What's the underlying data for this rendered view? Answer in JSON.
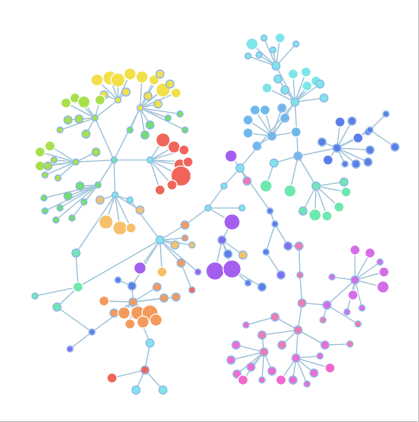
{
  "graph": {
    "layout": "force-directed",
    "edge_color": "#a9c9dc",
    "node_stroke": "#ffffff",
    "clusters": [
      {
        "name": "yellow",
        "color": "#f2e04a"
      },
      {
        "name": "lime",
        "color": "#a7e04a"
      },
      {
        "name": "green",
        "color": "#6fe06a"
      },
      {
        "name": "mint",
        "color": "#6fe7b0"
      },
      {
        "name": "cyan",
        "color": "#7ee6ea"
      },
      {
        "name": "sky",
        "color": "#6fb8ec"
      },
      {
        "name": "blue",
        "color": "#5c7ee8"
      },
      {
        "name": "indigo",
        "color": "#7f6ff0"
      },
      {
        "name": "purple",
        "color": "#a35ef0"
      },
      {
        "name": "violet",
        "color": "#d66de8"
      },
      {
        "name": "magenta",
        "color": "#f06ad0"
      },
      {
        "name": "pink",
        "color": "#f07ab0"
      },
      {
        "name": "red",
        "color": "#f0645a"
      },
      {
        "name": "orange",
        "color": "#f49a5a"
      },
      {
        "name": "amber",
        "color": "#f6c16a"
      }
    ]
  }
}
